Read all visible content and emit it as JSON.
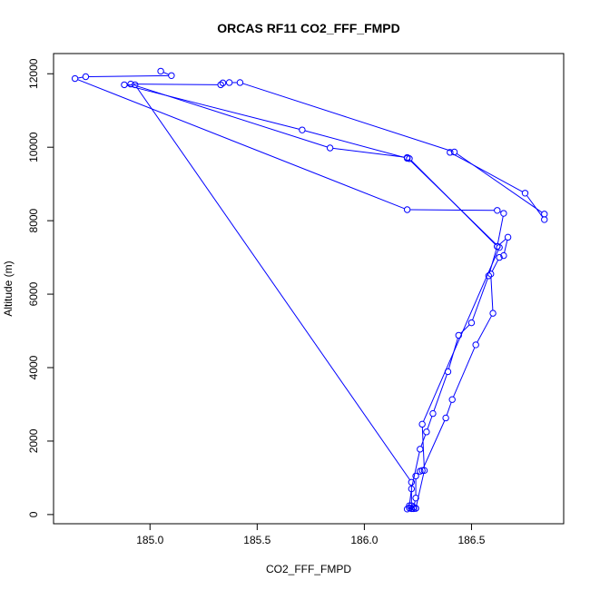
{
  "chart_data": {
    "type": "line",
    "title": "ORCAS RF11 CO2_FFF_FMPD",
    "xlabel": "CO2_FFF_FMPD",
    "ylabel": "Altitude (m)",
    "xlim": [
      184.55,
      186.93
    ],
    "ylim": [
      -250,
      12550
    ],
    "xticks": [
      185.0,
      185.5,
      186.0,
      186.5
    ],
    "xtick_labels": [
      "185.0",
      "185.5",
      "186.0",
      "186.5"
    ],
    "yticks": [
      0,
      2000,
      4000,
      6000,
      8000,
      10000,
      12000
    ],
    "ytick_labels": [
      "0",
      "2000",
      "4000",
      "6000",
      "8000",
      "10000",
      "12000"
    ],
    "grid": false,
    "series": [
      {
        "color": "#0000ff",
        "marker": "open-circle",
        "style": "overplotted line segments",
        "points": [
          [
            185.05,
            12070
          ],
          [
            185.1,
            11950
          ],
          [
            184.7,
            11920
          ],
          [
            184.65,
            11870
          ],
          [
            186.2,
            8300
          ],
          [
            186.62,
            8280
          ],
          [
            186.65,
            8200
          ],
          [
            186.62,
            7300
          ],
          [
            186.67,
            7550
          ],
          [
            186.65,
            7050
          ],
          [
            186.63,
            7000
          ],
          [
            186.59,
            6550
          ],
          [
            186.6,
            5480
          ],
          [
            186.52,
            4620
          ],
          [
            186.41,
            3130
          ],
          [
            186.38,
            2630
          ],
          [
            186.27,
            1200
          ],
          [
            186.26,
            1180
          ],
          [
            186.24,
            1050
          ],
          [
            186.24,
            450
          ],
          [
            186.23,
            200
          ],
          [
            186.24,
            170
          ],
          [
            186.22,
            160
          ],
          [
            186.2,
            150
          ],
          [
            186.21,
            180
          ],
          [
            186.22,
            240
          ],
          [
            186.22,
            880
          ],
          [
            184.93,
            11700
          ],
          [
            184.88,
            11700
          ],
          [
            185.71,
            10470
          ],
          [
            186.2,
            9700
          ],
          [
            186.21,
            9690
          ],
          [
            186.62,
            7300
          ],
          [
            186.58,
            6500
          ],
          [
            186.5,
            5220
          ],
          [
            186.44,
            4880
          ],
          [
            186.39,
            3890
          ],
          [
            186.32,
            2750
          ],
          [
            186.29,
            2250
          ],
          [
            186.26,
            1780
          ],
          [
            186.22,
            700
          ],
          [
            186.21,
            240
          ],
          [
            186.23,
            160
          ],
          [
            186.24,
            170
          ],
          [
            186.28,
            1200
          ],
          [
            186.27,
            2460
          ],
          [
            186.63,
            7270
          ],
          [
            186.2,
            9720
          ],
          [
            185.84,
            9980
          ],
          [
            184.91,
            11720
          ],
          [
            185.33,
            11700
          ],
          [
            185.34,
            11750
          ],
          [
            185.37,
            11760
          ],
          [
            185.42,
            11760
          ],
          [
            186.42,
            9870
          ],
          [
            186.84,
            8180
          ],
          [
            186.84,
            8030
          ],
          [
            186.75,
            8750
          ],
          [
            186.4,
            9860
          ]
        ]
      }
    ]
  }
}
